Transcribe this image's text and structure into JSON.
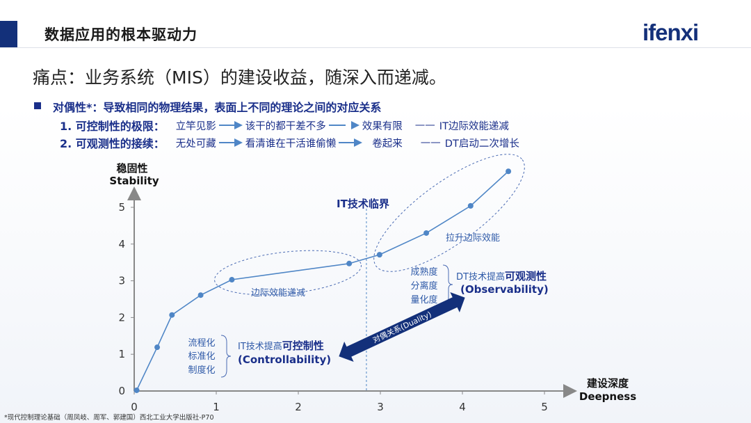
{
  "header": {
    "title": "数据应用的根本驱动力",
    "logo": "ifenxi"
  },
  "pain_point": "痛点：业务系统（MIS）的建设收益，随深入而递减。",
  "duality": {
    "heading": "对偶性*：导致相同的物理结果，表面上不同的理论之间的对应关系",
    "rows": [
      {
        "label": "1. 可控制性的极限：",
        "steps": [
          "立竿见影",
          "该干的都干差不多",
          "效果有限"
        ],
        "dash": "——",
        "result": "IT边际效能递减"
      },
      {
        "label": "2. 可观测性的接续：",
        "steps": [
          "无处可藏",
          "看清谁在干活谁偷懒",
          "卷起来"
        ],
        "dash": "——",
        "result": "DT启动二次增长"
      }
    ]
  },
  "footnote": "*现代控制理论基础（周凤岐、周军、郭建国）西北工业大学出版社-P70",
  "colors": {
    "accent": "#13307a",
    "line": "#4f86c6",
    "annotation": "#2f5aa8"
  },
  "chart_data": {
    "type": "line",
    "ylabel_cn": "稳固性",
    "ylabel": "Stability",
    "xlabel_cn": "建设深度",
    "xlabel": "Deepness",
    "xlim": [
      0,
      5
    ],
    "ylim": [
      0,
      6
    ],
    "xticks": [
      "0",
      "1",
      "2",
      "3",
      "4",
      "5"
    ],
    "yticks": [
      "0",
      "1",
      "2",
      "3",
      "4",
      "5"
    ],
    "grid": false,
    "points": [
      [
        0.03,
        0.02
      ],
      [
        0.28,
        1.19
      ],
      [
        0.46,
        2.07
      ],
      [
        0.81,
        2.61
      ],
      [
        1.19,
        3.03
      ],
      [
        2.62,
        3.47
      ],
      [
        2.99,
        3.71
      ],
      [
        3.56,
        4.3
      ],
      [
        4.1,
        5.04
      ],
      [
        4.56,
        5.98
      ]
    ],
    "threshold": {
      "x": 2.83,
      "label": "IT技术临界"
    },
    "annotations": {
      "diminishing": "边际效能递减",
      "raise": "拉升边际效能",
      "left_list": [
        "流程化",
        "标准化",
        "制度化"
      ],
      "left_prefix": "IT技术提高",
      "left_strong": "可控制性",
      "left_en": "(Controllability)",
      "right_list": [
        "成熟度",
        "分离度",
        "量化度"
      ],
      "right_prefix": "DT技术提高",
      "right_strong": "可观测性",
      "right_en": "(Observability)",
      "arrow_label": "对偶关系(Duality)"
    }
  }
}
